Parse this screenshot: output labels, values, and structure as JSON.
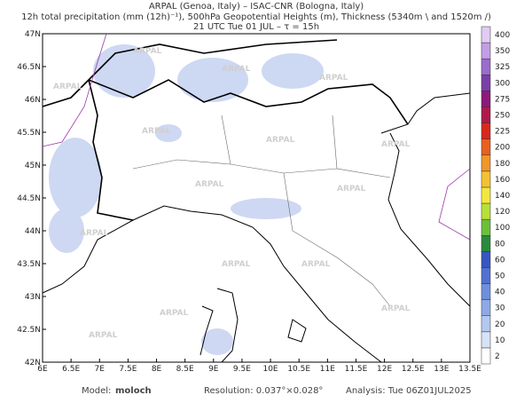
{
  "header": {
    "line1": "ARPAL (Genoa, Italy)  –  ISAC-CNR (Bologna, Italy)",
    "line2": "12h total precipitation (mm (12h)⁻¹), 500hPa Geopotential Heights (m), Thickness (5340m \\ and 1520m /)",
    "line3": "21 UTC Tue 01 JUL  –  τ = 15h"
  },
  "map": {
    "xlim": [
      6,
      13.5
    ],
    "ylim": [
      42,
      47
    ],
    "xticks": [
      {
        "value": 6,
        "label": "6E"
      },
      {
        "value": 6.5,
        "label": "6.5E"
      },
      {
        "value": 7,
        "label": "7E"
      },
      {
        "value": 7.5,
        "label": "7.5E"
      },
      {
        "value": 8,
        "label": "8E"
      },
      {
        "value": 8.5,
        "label": "8.5E"
      },
      {
        "value": 9,
        "label": "9E"
      },
      {
        "value": 9.5,
        "label": "9.5E"
      },
      {
        "value": 10,
        "label": "10E"
      },
      {
        "value": 10.5,
        "label": "10.5E"
      },
      {
        "value": 11,
        "label": "11E"
      },
      {
        "value": 11.5,
        "label": "11.5E"
      },
      {
        "value": 12,
        "label": "12E"
      },
      {
        "value": 12.5,
        "label": "12.5E"
      },
      {
        "value": 13,
        "label": "13E"
      },
      {
        "value": 13.5,
        "label": "13.5E"
      }
    ],
    "yticks": [
      {
        "value": 42,
        "label": "42N"
      },
      {
        "value": 42.5,
        "label": "42.5N"
      },
      {
        "value": 43,
        "label": "43N"
      },
      {
        "value": 43.5,
        "label": "43.5N"
      },
      {
        "value": 44,
        "label": "44N"
      },
      {
        "value": 44.5,
        "label": "44.5N"
      },
      {
        "value": 45,
        "label": "45N"
      },
      {
        "value": 45.5,
        "label": "45.5N"
      },
      {
        "value": 46,
        "label": "46N"
      },
      {
        "value": 46.5,
        "label": "46.5N"
      },
      {
        "value": 47,
        "label": "47N"
      }
    ],
    "watermark": "ARPAL"
  },
  "colorbar": {
    "levels": [
      2,
      10,
      20,
      30,
      40,
      50,
      60,
      80,
      100,
      120,
      140,
      160,
      180,
      200,
      225,
      250,
      275,
      300,
      325,
      350,
      400
    ],
    "colors": [
      "#ffffff",
      "#d6e2f5",
      "#b3c8ee",
      "#8fa9e6",
      "#6f8fdd",
      "#5071d0",
      "#3657c0",
      "#2a8a3c",
      "#6cbf3a",
      "#b8e03a",
      "#f2e640",
      "#f3c233",
      "#f0962a",
      "#e8601f",
      "#d8291c",
      "#b01a4a",
      "#8c1a7a",
      "#7a3fa8",
      "#9a6ccc",
      "#c29ee4",
      "#e0ccf3"
    ]
  },
  "footer": {
    "model_label": "Model:",
    "model": "moloch",
    "resolution": "Resolution: 0.037°×0.028°",
    "analysis": "Analysis: Tue 06Z01JUL2025"
  }
}
